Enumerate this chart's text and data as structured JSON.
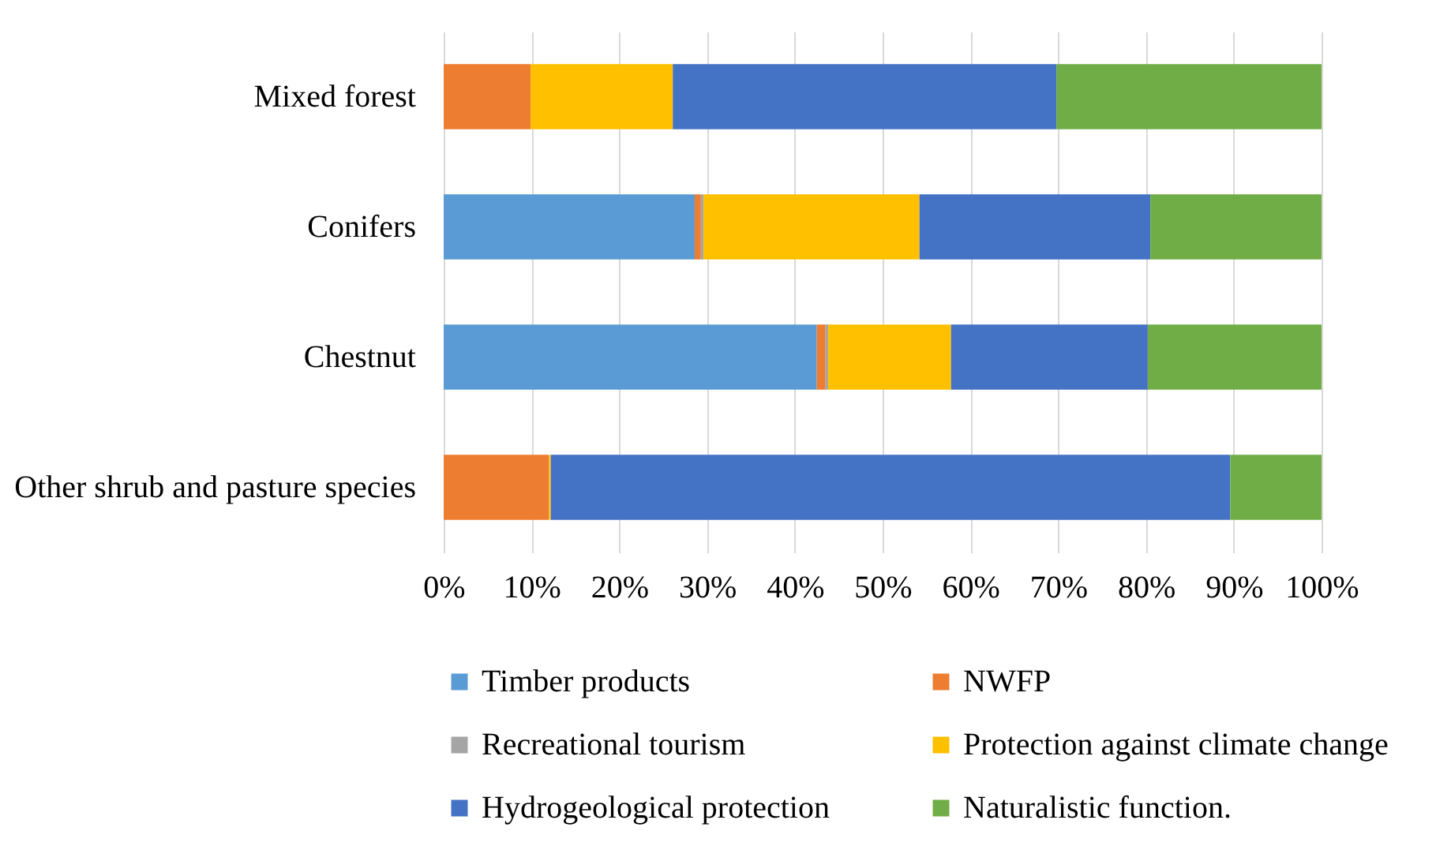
{
  "chart_data": {
    "type": "bar",
    "orientation": "horizontal",
    "stacked": true,
    "categories": [
      "Mixed forest",
      "Conifers",
      "Chestnut",
      "Other shrub and pasture species"
    ],
    "series": [
      {
        "name": "Timber products",
        "color": "#5b9bd5",
        "values": [
          0,
          28.6,
          42.5,
          0
        ]
      },
      {
        "name": "NWFP",
        "color": "#ed7d31",
        "values": [
          9.9,
          0.7,
          1.0,
          12.0
        ]
      },
      {
        "name": "Recreational tourism",
        "color": "#a5a5a5",
        "values": [
          0,
          0.3,
          0.3,
          0
        ]
      },
      {
        "name": "Protection against climate change",
        "color": "#ffc000",
        "values": [
          16.2,
          24.6,
          14.0,
          0.2
        ]
      },
      {
        "name": "Hydrogeological protection",
        "color": "#4472c4",
        "values": [
          43.7,
          26.3,
          22.4,
          77.4
        ]
      },
      {
        "name": "Naturalistic function.",
        "color": "#70ad47",
        "values": [
          30.2,
          19.5,
          19.8,
          10.4
        ]
      }
    ],
    "xlim": [
      0,
      100
    ],
    "xticks": [
      {
        "value": 0,
        "label": "0%"
      },
      {
        "value": 10,
        "label": "10%"
      },
      {
        "value": 20,
        "label": "20%"
      },
      {
        "value": 30,
        "label": "30%"
      },
      {
        "value": 40,
        "label": "40%"
      },
      {
        "value": 50,
        "label": "50%"
      },
      {
        "value": 60,
        "label": "60%"
      },
      {
        "value": 70,
        "label": "70%"
      },
      {
        "value": 80,
        "label": "80%"
      },
      {
        "value": 90,
        "label": "90%"
      },
      {
        "value": 100,
        "label": "100%"
      }
    ],
    "grid": "x",
    "legend": "bottom"
  }
}
